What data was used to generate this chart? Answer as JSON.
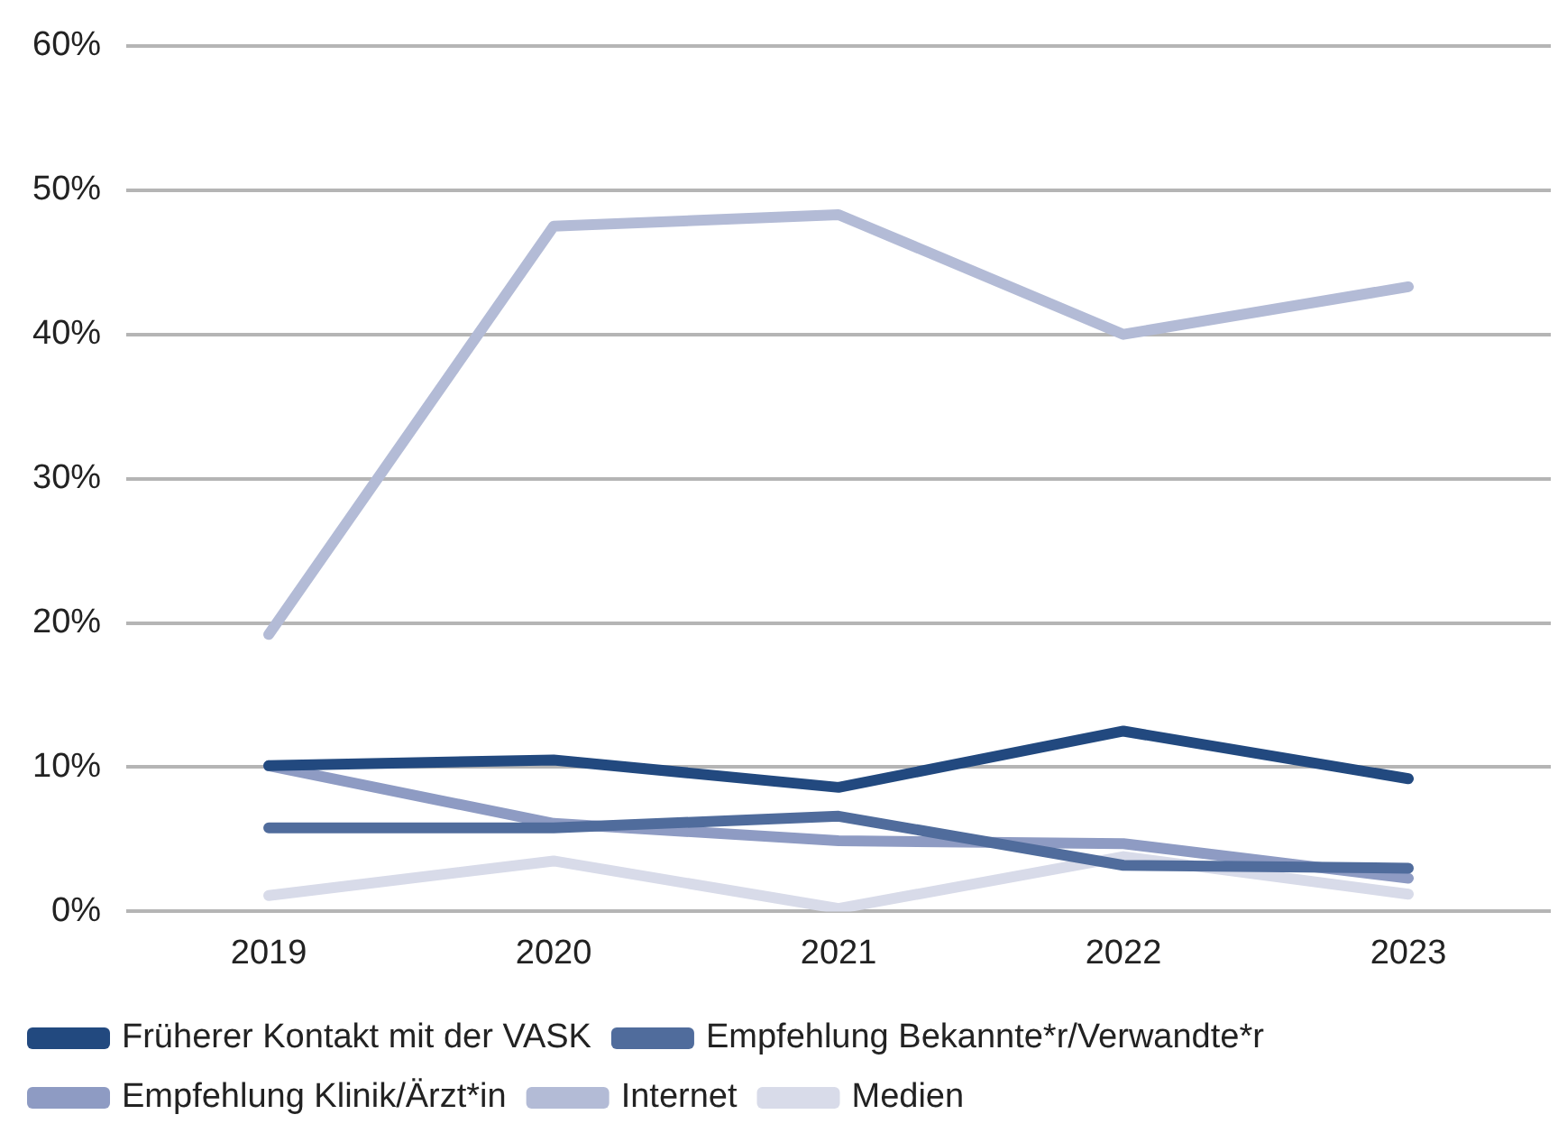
{
  "chart_data": {
    "type": "line",
    "categories": [
      "2019",
      "2020",
      "2021",
      "2022",
      "2023"
    ],
    "series": [
      {
        "name": "Früherer Kontakt mit der VASK",
        "color": "#22497f",
        "values": [
          10.1,
          10.5,
          8.6,
          12.5,
          9.2
        ]
      },
      {
        "name": "Empfehlung Bekannte*r/Verwandte*r",
        "color": "#506c9c",
        "values": [
          5.8,
          5.8,
          6.6,
          3.2,
          3.0
        ]
      },
      {
        "name": "Empfehlung Klinik/Ärzt*in",
        "color": "#8e9bc3",
        "values": [
          10.1,
          6.1,
          4.9,
          4.7,
          2.3
        ]
      },
      {
        "name": "Internet",
        "color": "#b3bbd6",
        "values": [
          19.2,
          47.5,
          48.3,
          40.0,
          43.3
        ]
      },
      {
        "name": "Medien",
        "color": "#d8dbe9",
        "values": [
          1.1,
          3.5,
          0.2,
          3.8,
          1.2
        ]
      }
    ],
    "ylim": [
      0,
      60
    ],
    "yticks": [
      {
        "value": 0,
        "label": "0%"
      },
      {
        "value": 10,
        "label": "10%"
      },
      {
        "value": 20,
        "label": "20%"
      },
      {
        "value": 30,
        "label": "30%"
      },
      {
        "value": 40,
        "label": "40%"
      },
      {
        "value": 50,
        "label": "50%"
      },
      {
        "value": 60,
        "label": "60%"
      }
    ],
    "grid": "y",
    "legend": "bottom",
    "marker": "none",
    "line_style": "solid"
  }
}
